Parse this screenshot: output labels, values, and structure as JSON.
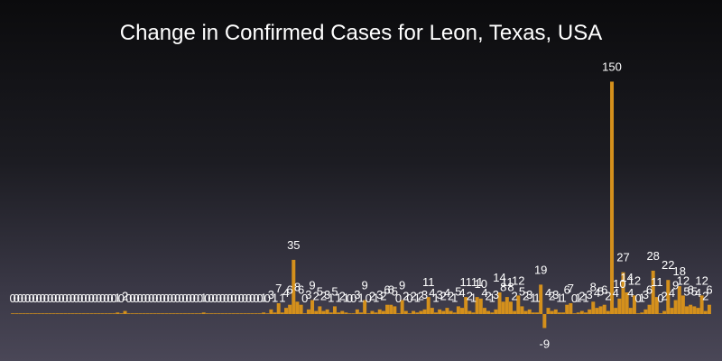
{
  "chart_data": {
    "type": "bar",
    "title": "Change in Confirmed Cases for Leon, Texas, USA",
    "xlabel": "",
    "ylabel": "",
    "bar_color": "#d4901c",
    "grid": false,
    "legend": "none",
    "ylim": [
      -9,
      150
    ],
    "values": [
      0,
      0,
      0,
      0,
      0,
      0,
      0,
      0,
      0,
      0,
      0,
      0,
      0,
      0,
      0,
      0,
      0,
      0,
      0,
      0,
      0,
      0,
      0,
      0,
      0,
      0,
      0,
      0,
      1,
      0,
      2,
      0,
      0,
      0,
      0,
      0,
      0,
      0,
      0,
      0,
      0,
      0,
      0,
      0,
      0,
      0,
      0,
      0,
      0,
      0,
      0,
      1,
      0,
      0,
      0,
      0,
      0,
      0,
      0,
      0,
      0,
      0,
      0,
      0,
      0,
      0,
      0,
      1,
      0,
      3,
      1,
      7,
      1,
      4,
      6,
      35,
      8,
      6,
      0,
      3,
      9,
      2,
      5,
      2,
      3,
      1,
      5,
      1,
      2,
      1,
      0,
      0,
      3,
      1,
      9,
      0,
      2,
      1,
      3,
      2,
      6,
      6,
      5,
      0,
      9,
      2,
      0,
      2,
      1,
      2,
      3,
      11,
      4,
      1,
      3,
      2,
      4,
      2,
      1,
      5,
      4,
      11,
      2,
      1,
      11,
      10,
      4,
      2,
      1,
      3,
      14,
      8,
      11,
      8,
      2,
      12,
      5,
      2,
      3,
      1,
      1,
      19,
      -9,
      4,
      2,
      3,
      1,
      1,
      6,
      7,
      0,
      1,
      2,
      1,
      3,
      8,
      4,
      5,
      6,
      2,
      150,
      4,
      10,
      27,
      14,
      4,
      12,
      0,
      1,
      3,
      6,
      28,
      11,
      0,
      2,
      22,
      4,
      9,
      18,
      12,
      5,
      6,
      5,
      4,
      12,
      2,
      6
    ]
  }
}
